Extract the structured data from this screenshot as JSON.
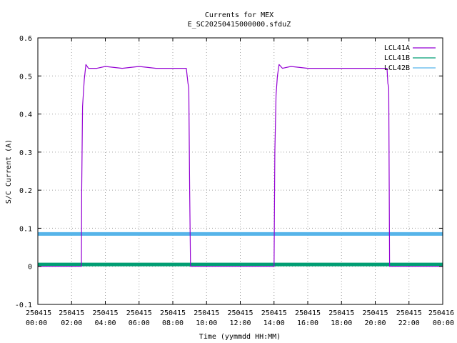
{
  "chart_data": {
    "type": "line",
    "title": "Currents for MEX",
    "subtitle": "E_SC20250415000000.sfduZ",
    "xlabel": "Time (yymmdd HH:MM)",
    "ylabel": "S/C Current (A)",
    "xlim": [
      0,
      24
    ],
    "ylim": [
      -0.1,
      0.6
    ],
    "grid": true,
    "legend_position": "top-right",
    "x_ticks": [
      {
        "value": 0,
        "date": "250415",
        "time": "00:00"
      },
      {
        "value": 2,
        "date": "250415",
        "time": "02:00"
      },
      {
        "value": 4,
        "date": "250415",
        "time": "04:00"
      },
      {
        "value": 6,
        "date": "250415",
        "time": "06:00"
      },
      {
        "value": 8,
        "date": "250415",
        "time": "08:00"
      },
      {
        "value": 10,
        "date": "250415",
        "time": "10:00"
      },
      {
        "value": 12,
        "date": "250415",
        "time": "12:00"
      },
      {
        "value": 14,
        "date": "250415",
        "time": "14:00"
      },
      {
        "value": 16,
        "date": "250415",
        "time": "16:00"
      },
      {
        "value": 18,
        "date": "250415",
        "time": "18:00"
      },
      {
        "value": 20,
        "date": "250415",
        "time": "20:00"
      },
      {
        "value": 22,
        "date": "250415",
        "time": "22:00"
      },
      {
        "value": 24,
        "date": "250416",
        "time": "00:00"
      }
    ],
    "y_ticks": [
      {
        "value": -0.1,
        "label": "-0.1"
      },
      {
        "value": 0,
        "label": "0"
      },
      {
        "value": 0.1,
        "label": "0.1"
      },
      {
        "value": 0.2,
        "label": "0.2"
      },
      {
        "value": 0.3,
        "label": "0.3"
      },
      {
        "value": 0.4,
        "label": "0.4"
      },
      {
        "value": 0.5,
        "label": "0.5"
      },
      {
        "value": 0.6,
        "label": "0.6"
      }
    ],
    "series": [
      {
        "name": "LCL41A",
        "color": "#9400d3",
        "x": [
          0,
          2.58,
          2.6,
          2.65,
          2.75,
          2.85,
          3.0,
          3.5,
          4.0,
          5.0,
          6.0,
          7.0,
          8.0,
          8.5,
          8.8,
          8.9,
          8.95,
          9.0,
          9.05,
          14.0,
          14.05,
          14.12,
          14.2,
          14.3,
          14.5,
          15.0,
          16.0,
          17.0,
          18.0,
          19.0,
          20.0,
          20.4,
          20.7,
          20.75,
          20.8,
          20.85,
          24.0
        ],
        "y": [
          0,
          0,
          0.2,
          0.42,
          0.49,
          0.53,
          0.52,
          0.52,
          0.525,
          0.52,
          0.525,
          0.52,
          0.52,
          0.52,
          0.52,
          0.48,
          0.47,
          0.2,
          0,
          0,
          0.3,
          0.45,
          0.5,
          0.53,
          0.52,
          0.525,
          0.52,
          0.52,
          0.52,
          0.52,
          0.52,
          0.52,
          0.52,
          0.48,
          0.47,
          0,
          0
        ]
      },
      {
        "name": "LCL41B",
        "color": "#009e73",
        "x": [
          0,
          24
        ],
        "y": [
          0.005,
          0.005
        ]
      },
      {
        "name": "LCL42B",
        "color": "#56b4e9",
        "x": [
          0,
          24
        ],
        "y": [
          0.085,
          0.085
        ]
      }
    ]
  }
}
